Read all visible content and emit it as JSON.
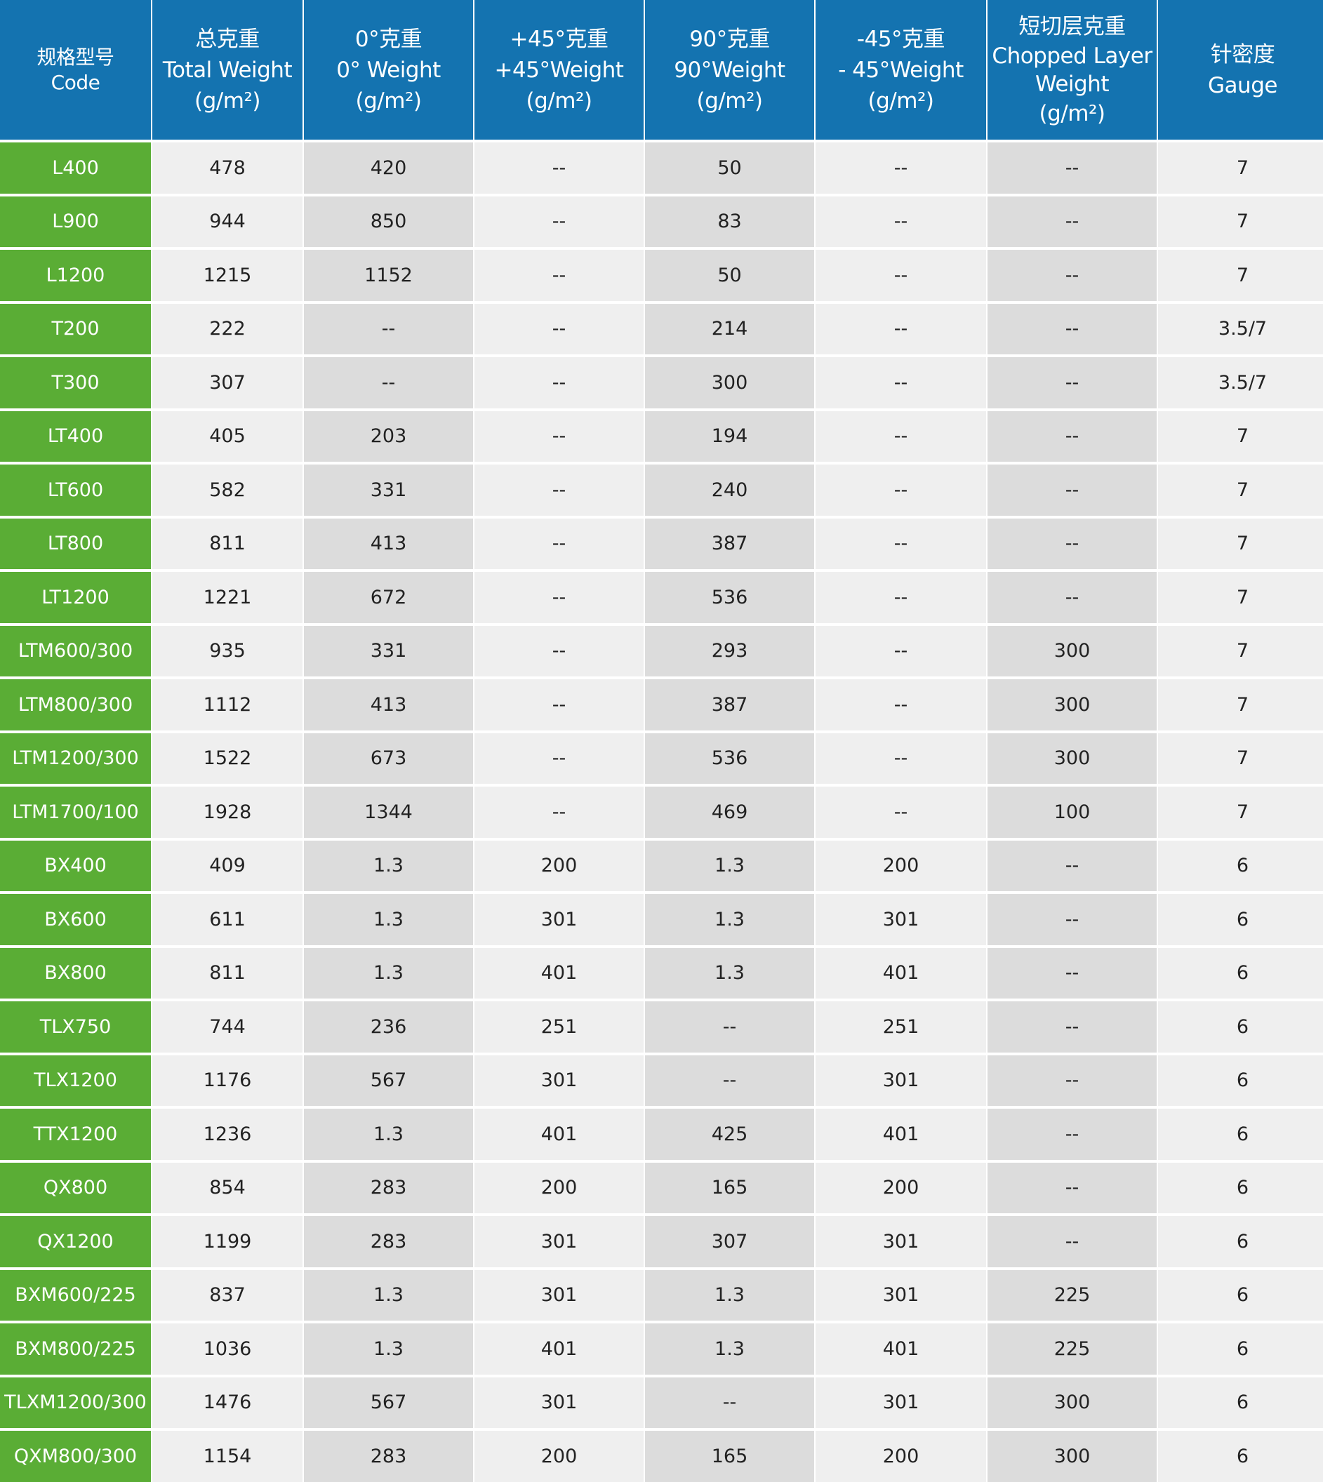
{
  "colors": {
    "header": "#1473b0",
    "code": "#5aad35",
    "light": "#efefef",
    "dark": "#dcdcdc"
  },
  "headers": [
    {
      "cn": "规格型号",
      "en": "Code",
      "unit": ""
    },
    {
      "cn": "总克重",
      "en": "Total Weight",
      "unit": "(g/m²)"
    },
    {
      "cn": "0°克重",
      "en": "0° Weight",
      "unit": "(g/m²)"
    },
    {
      "cn": "+45°克重",
      "en": "+45°Weight",
      "unit": "(g/m²)"
    },
    {
      "cn": "90°克重",
      "en": "90°Weight",
      "unit": "(g/m²)"
    },
    {
      "cn": "-45°克重",
      "en": "- 45°Weight",
      "unit": "(g/m²)"
    },
    {
      "cn": "短切层克重",
      "en": "Chopped Layer Weight",
      "unit": "(g/m²)"
    },
    {
      "cn": "针密度",
      "en": "Gauge",
      "unit": ""
    }
  ],
  "rows": [
    [
      "L400",
      "478",
      "420",
      "--",
      "50",
      "--",
      "--",
      "7"
    ],
    [
      "L900",
      "944",
      "850",
      "--",
      "83",
      "--",
      "--",
      "7"
    ],
    [
      "L1200",
      "1215",
      "1152",
      "--",
      "50",
      "--",
      "--",
      "7"
    ],
    [
      "T200",
      "222",
      "--",
      "--",
      "214",
      "--",
      "--",
      "3.5/7"
    ],
    [
      "T300",
      "307",
      "--",
      "--",
      "300",
      "--",
      "--",
      "3.5/7"
    ],
    [
      "LT400",
      "405",
      "203",
      "--",
      "194",
      "--",
      "--",
      "7"
    ],
    [
      "LT600",
      "582",
      "331",
      "--",
      "240",
      "--",
      "--",
      "7"
    ],
    [
      "LT800",
      "811",
      "413",
      "--",
      "387",
      "--",
      "--",
      "7"
    ],
    [
      "LT1200",
      "1221",
      "672",
      "--",
      "536",
      "--",
      "--",
      "7"
    ],
    [
      "LTM600/300",
      "935",
      "331",
      "--",
      "293",
      "--",
      "300",
      "7"
    ],
    [
      "LTM800/300",
      "1112",
      "413",
      "--",
      "387",
      "--",
      "300",
      "7"
    ],
    [
      "LTM1200/300",
      "1522",
      "673",
      "--",
      "536",
      "--",
      "300",
      "7"
    ],
    [
      "LTM1700/100",
      "1928",
      "1344",
      "--",
      "469",
      "--",
      "100",
      "7"
    ],
    [
      "BX400",
      "409",
      "1.3",
      "200",
      "1.3",
      "200",
      "--",
      "6"
    ],
    [
      "BX600",
      "611",
      "1.3",
      "301",
      "1.3",
      "301",
      "--",
      "6"
    ],
    [
      "BX800",
      "811",
      "1.3",
      "401",
      "1.3",
      "401",
      "--",
      "6"
    ],
    [
      "TLX750",
      "744",
      "236",
      "251",
      "--",
      "251",
      "--",
      "6"
    ],
    [
      "TLX1200",
      "1176",
      "567",
      "301",
      "--",
      "301",
      "--",
      "6"
    ],
    [
      "TTX1200",
      "1236",
      "1.3",
      "401",
      "425",
      "401",
      "--",
      "6"
    ],
    [
      "QX800",
      "854",
      "283",
      "200",
      "165",
      "200",
      "--",
      "6"
    ],
    [
      "QX1200",
      "1199",
      "283",
      "301",
      "307",
      "301",
      "--",
      "6"
    ],
    [
      "BXM600/225",
      "837",
      "1.3",
      "301",
      "1.3",
      "301",
      "225",
      "6"
    ],
    [
      "BXM800/225",
      "1036",
      "1.3",
      "401",
      "1.3",
      "401",
      "225",
      "6"
    ],
    [
      "TLXM1200/300",
      "1476",
      "567",
      "301",
      "--",
      "301",
      "300",
      "6"
    ],
    [
      "QXM800/300",
      "1154",
      "283",
      "200",
      "165",
      "200",
      "300",
      "6"
    ]
  ]
}
